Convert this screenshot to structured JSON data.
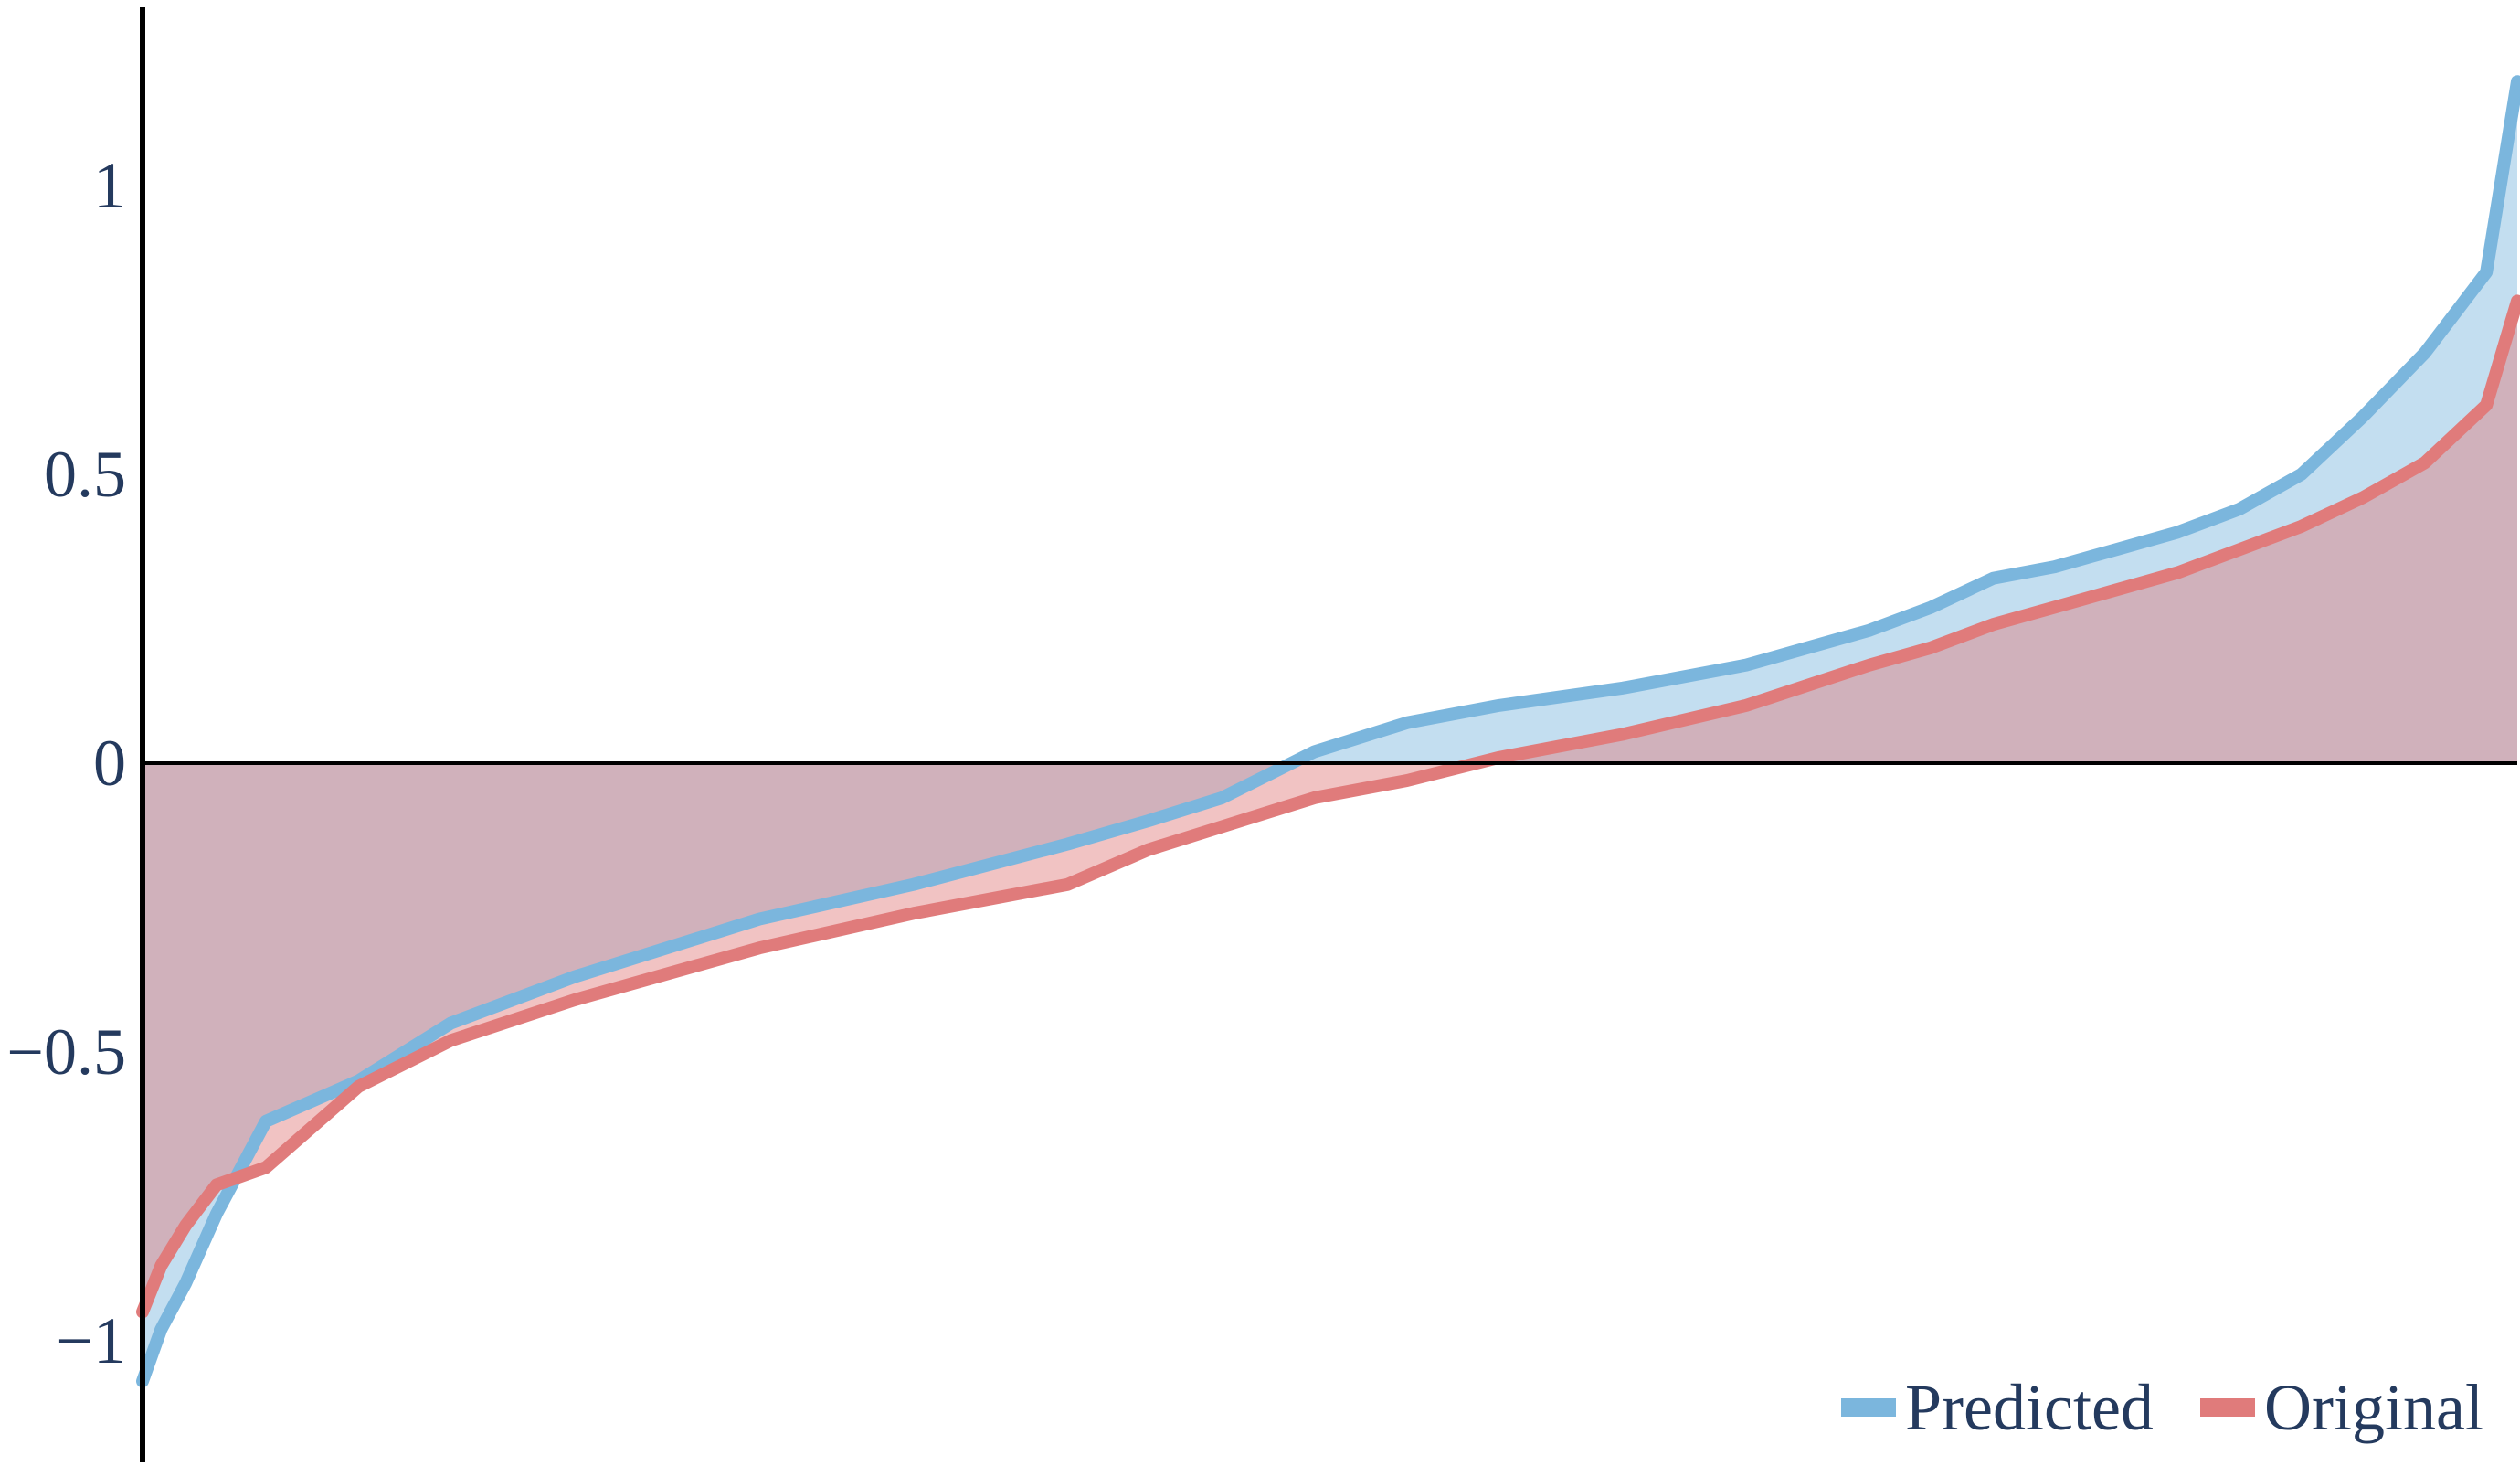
{
  "chart_data": {
    "type": "area",
    "title": "",
    "xlabel": "",
    "ylabel": "",
    "x": [
      0,
      3,
      7,
      12,
      20,
      35,
      50,
      70,
      100,
      125,
      150,
      163,
      175,
      190,
      205,
      220,
      240,
      260,
      280,
      290,
      300,
      310,
      320,
      330,
      340,
      350,
      360,
      370,
      380,
      385
    ],
    "xlim": [
      0,
      385
    ],
    "ylim": [
      -1.2,
      1.3
    ],
    "yticks": [
      {
        "value": 1,
        "label": "1"
      },
      {
        "value": 0.5,
        "label": "0.5"
      },
      {
        "value": 0,
        "label": "0"
      },
      {
        "value": -0.5,
        "label": "−0.5"
      },
      {
        "value": -1,
        "label": "−1"
      }
    ],
    "grid": false,
    "legend_position": "bottom-right",
    "series": [
      {
        "name": "Predicted",
        "color": "#7bb6dd",
        "values": [
          -1.07,
          -0.98,
          -0.9,
          -0.78,
          -0.62,
          -0.55,
          -0.45,
          -0.37,
          -0.27,
          -0.21,
          -0.14,
          -0.1,
          -0.06,
          0.02,
          0.07,
          0.1,
          0.13,
          0.17,
          0.23,
          0.27,
          0.32,
          0.34,
          0.37,
          0.4,
          0.44,
          0.5,
          0.6,
          0.71,
          0.85,
          1.18
        ]
      },
      {
        "name": "Original",
        "color": "#e07b7b",
        "values": [
          -0.95,
          -0.87,
          -0.8,
          -0.73,
          -0.7,
          -0.56,
          -0.48,
          -0.41,
          -0.32,
          -0.26,
          -0.21,
          -0.15,
          -0.11,
          -0.06,
          -0.03,
          0.01,
          0.05,
          0.1,
          0.17,
          0.2,
          0.24,
          0.27,
          0.3,
          0.33,
          0.37,
          0.41,
          0.46,
          0.52,
          0.62,
          0.8
        ]
      }
    ]
  }
}
